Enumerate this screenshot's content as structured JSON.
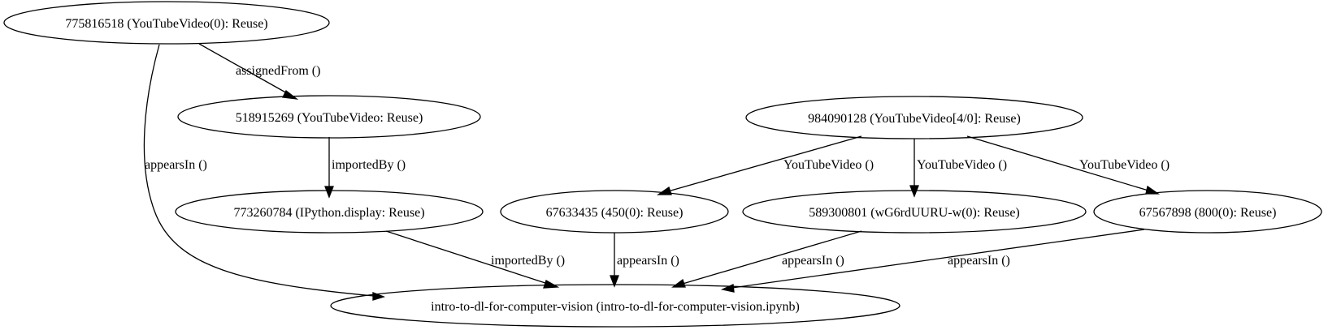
{
  "graph": {
    "nodes": [
      {
        "id": "n775816518",
        "label": "775816518 (YouTubeVideo(0): Reuse)"
      },
      {
        "id": "n518915269",
        "label": "518915269 (YouTubeVideo: Reuse)"
      },
      {
        "id": "n773260784",
        "label": "773260784 (IPython.display: Reuse)"
      },
      {
        "id": "n984090128",
        "label": "984090128 (YouTubeVideo[4/0]: Reuse)"
      },
      {
        "id": "n67633435",
        "label": "67633435 (450(0): Reuse)"
      },
      {
        "id": "n589300801",
        "label": "589300801 (wG6rdUURU-w(0): Reuse)"
      },
      {
        "id": "n67567898",
        "label": "67567898 (800(0): Reuse)"
      },
      {
        "id": "nintro",
        "label": "intro-to-dl-for-computer-vision (intro-to-dl-for-computer-vision.ipynb)"
      }
    ],
    "edges": [
      {
        "from": "n775816518",
        "to": "n518915269",
        "label": "assignedFrom ()"
      },
      {
        "from": "n775816518",
        "to": "nintro",
        "label": "appearsIn ()"
      },
      {
        "from": "n518915269",
        "to": "n773260784",
        "label": "importedBy ()"
      },
      {
        "from": "n773260784",
        "to": "nintro",
        "label": "importedBy ()"
      },
      {
        "from": "n984090128",
        "to": "n67633435",
        "label": "YouTubeVideo ()"
      },
      {
        "from": "n984090128",
        "to": "n589300801",
        "label": "YouTubeVideo ()"
      },
      {
        "from": "n984090128",
        "to": "n67567898",
        "label": "YouTubeVideo ()"
      },
      {
        "from": "n67633435",
        "to": "nintro",
        "label": "appearsIn ()"
      },
      {
        "from": "n589300801",
        "to": "nintro",
        "label": "appearsIn ()"
      },
      {
        "from": "n67567898",
        "to": "nintro",
        "label": "appearsIn ()"
      }
    ]
  }
}
